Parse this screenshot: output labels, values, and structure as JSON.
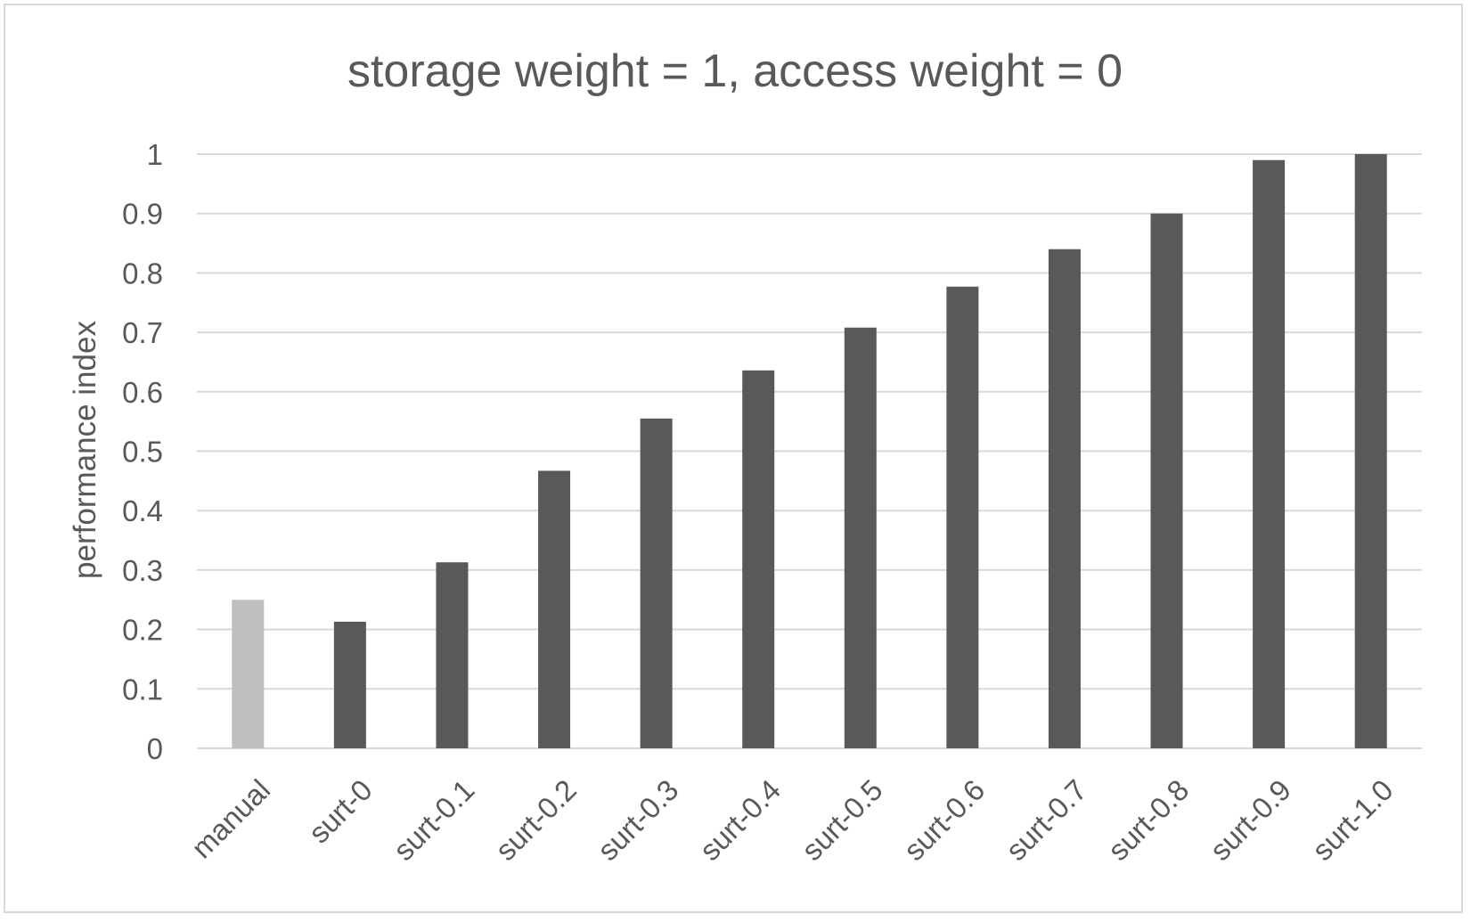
{
  "chart_data": {
    "type": "bar",
    "title": "storage weight = 1, access weight = 0",
    "xlabel": "",
    "ylabel": "performance index",
    "categories": [
      "manual",
      "surt-0",
      "surt-0.1",
      "surt-0.2",
      "surt-0.3",
      "surt-0.4",
      "surt-0.5",
      "surt-0.6",
      "surt-0.7",
      "surt-0.8",
      "surt-0.9",
      "surt-1.0"
    ],
    "values": [
      0.25,
      0.213,
      0.313,
      0.467,
      0.555,
      0.636,
      0.708,
      0.777,
      0.84,
      0.9,
      0.99,
      1.0
    ],
    "bar_colors": [
      "#bfbfbf",
      "#595959",
      "#595959",
      "#595959",
      "#595959",
      "#595959",
      "#595959",
      "#595959",
      "#595959",
      "#595959",
      "#595959",
      "#595959"
    ],
    "ylim": [
      0,
      1
    ],
    "yticks": [
      "0",
      "0.1",
      "0.2",
      "0.3",
      "0.4",
      "0.5",
      "0.6",
      "0.7",
      "0.8",
      "0.9",
      "1"
    ],
    "grid": true,
    "legend": "none"
  }
}
